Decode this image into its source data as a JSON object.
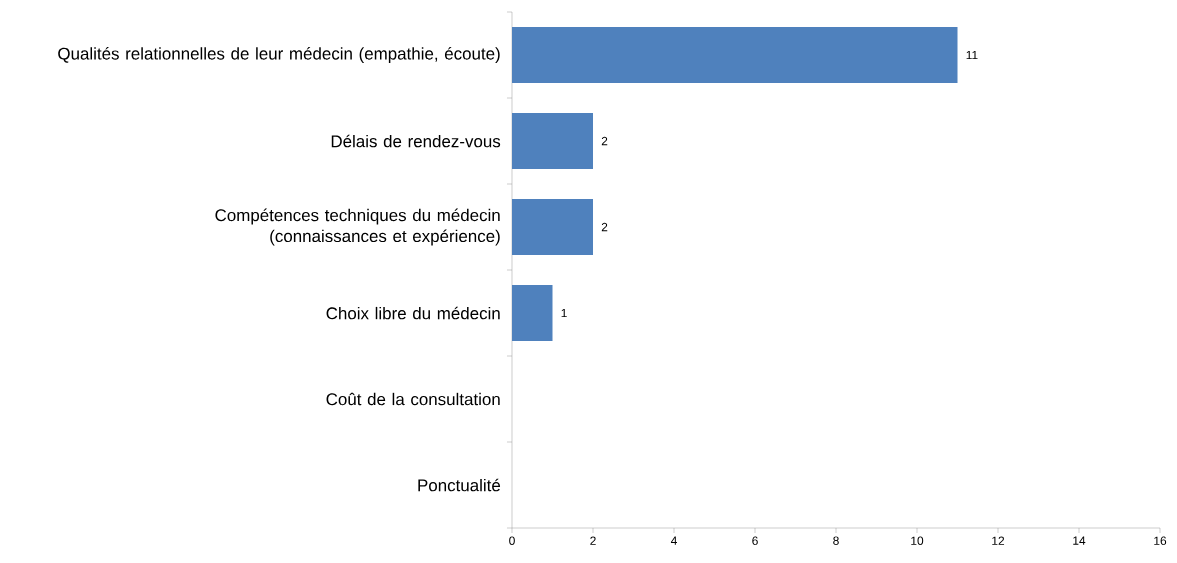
{
  "chart_data": {
    "type": "bar",
    "orientation": "horizontal",
    "categories": [
      "Qualités relationnelles de leur médecin (empathie, écoute)",
      "Délais de rendez-vous",
      "Compétences techniques du médecin (connaissances et expérience)",
      "Choix libre du médecin",
      "Coût de la consultation",
      "Ponctualité"
    ],
    "values": [
      11,
      2,
      2,
      1,
      0,
      0
    ],
    "value_labels": [
      "11",
      "2",
      "2",
      "1",
      null,
      null
    ],
    "color": "#4f81bd",
    "xlim": [
      0,
      16
    ],
    "xticks": [
      0,
      2,
      4,
      6,
      8,
      10,
      12,
      14,
      16
    ],
    "grid": false
  }
}
